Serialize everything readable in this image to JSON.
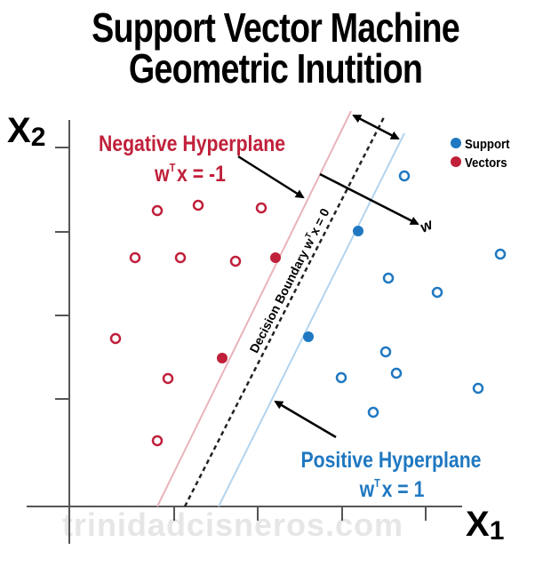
{
  "title": {
    "line1": "Support Vector Machine",
    "line2": "Geometric Inutition"
  },
  "axes": {
    "x_label": "X",
    "x_sub": "1",
    "y_label": "X",
    "y_sub": "2"
  },
  "negative_hyperplane": {
    "label": "Negative Hyperplane",
    "eq_w": "w",
    "eq_t": "T",
    "eq_rest": "x = -1"
  },
  "positive_hyperplane": {
    "label": "Positive Hyperplane",
    "eq_w": "w",
    "eq_t": "T",
    "eq_rest": "x = 1"
  },
  "decision_boundary": {
    "label": "Decision Boundary w",
    "sup": "T",
    "rest": "x = 0"
  },
  "w_label": "w",
  "legend": {
    "item1": "Support",
    "item2": "Vectors"
  },
  "watermark": "trinidadcisneros.com",
  "colors": {
    "red": "#c0203a",
    "blue": "#1f78c1",
    "negative_line": "#e8b3ba",
    "positive_line": "#b3d4ee",
    "watermark": "#e6e6e6"
  }
}
